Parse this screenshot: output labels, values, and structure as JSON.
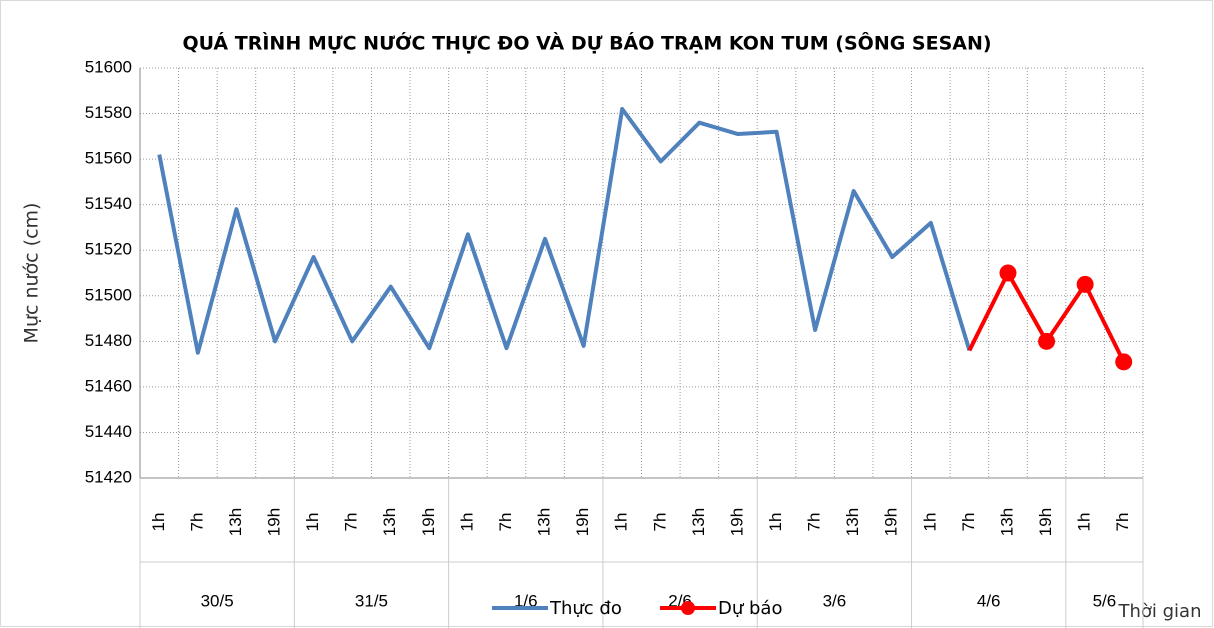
{
  "chart_data": {
    "type": "line",
    "title": "QUÁ TRÌNH MỰC NƯỚC THỰC ĐO VÀ DỰ BÁO TRẠM KON TUM (SÔNG SESAN)",
    "y_label": "Mực nước (cm)",
    "x_label": "Thời gian",
    "categories": [
      "1h",
      "7h",
      "13h",
      "19h",
      "1h",
      "7h",
      "13h",
      "19h",
      "1h",
      "7h",
      "13h",
      "19h",
      "1h",
      "7h",
      "13h",
      "19h",
      "1h",
      "7h",
      "13h",
      "19h",
      "1h",
      "7h",
      "13h",
      "19h",
      "1h",
      "7h"
    ],
    "category_days": [
      "30/5",
      "30/5",
      "30/5",
      "30/5",
      "31/5",
      "31/5",
      "31/5",
      "31/5",
      "1/6",
      "1/6",
      "1/6",
      "1/6",
      "2/6",
      "2/6",
      "2/6",
      "2/6",
      "3/6",
      "3/6",
      "3/6",
      "3/6",
      "4/6",
      "4/6",
      "4/6",
      "4/6",
      "5/6",
      "5/6"
    ],
    "series": [
      {
        "name": "Thực đo",
        "color": "#4f81bd",
        "values": [
          51562,
          51475,
          51538,
          51480,
          51517,
          51480,
          51504,
          51477,
          51527,
          51477,
          51525,
          51478,
          51582,
          51559,
          51576,
          51571,
          51572,
          51485,
          51546,
          51517,
          51532,
          51476,
          null,
          null,
          null,
          null
        ]
      },
      {
        "name": "Dự báo",
        "color": "#ff0000",
        "values": [
          null,
          null,
          null,
          null,
          null,
          null,
          null,
          null,
          null,
          null,
          null,
          null,
          null,
          null,
          null,
          null,
          null,
          null,
          null,
          null,
          null,
          51476,
          51510,
          51480,
          51505,
          51471
        ]
      }
    ],
    "ylim": [
      51420,
      51600
    ],
    "yticks": [
      51420,
      51440,
      51460,
      51480,
      51500,
      51520,
      51540,
      51560,
      51580,
      51600
    ],
    "grid": true
  }
}
